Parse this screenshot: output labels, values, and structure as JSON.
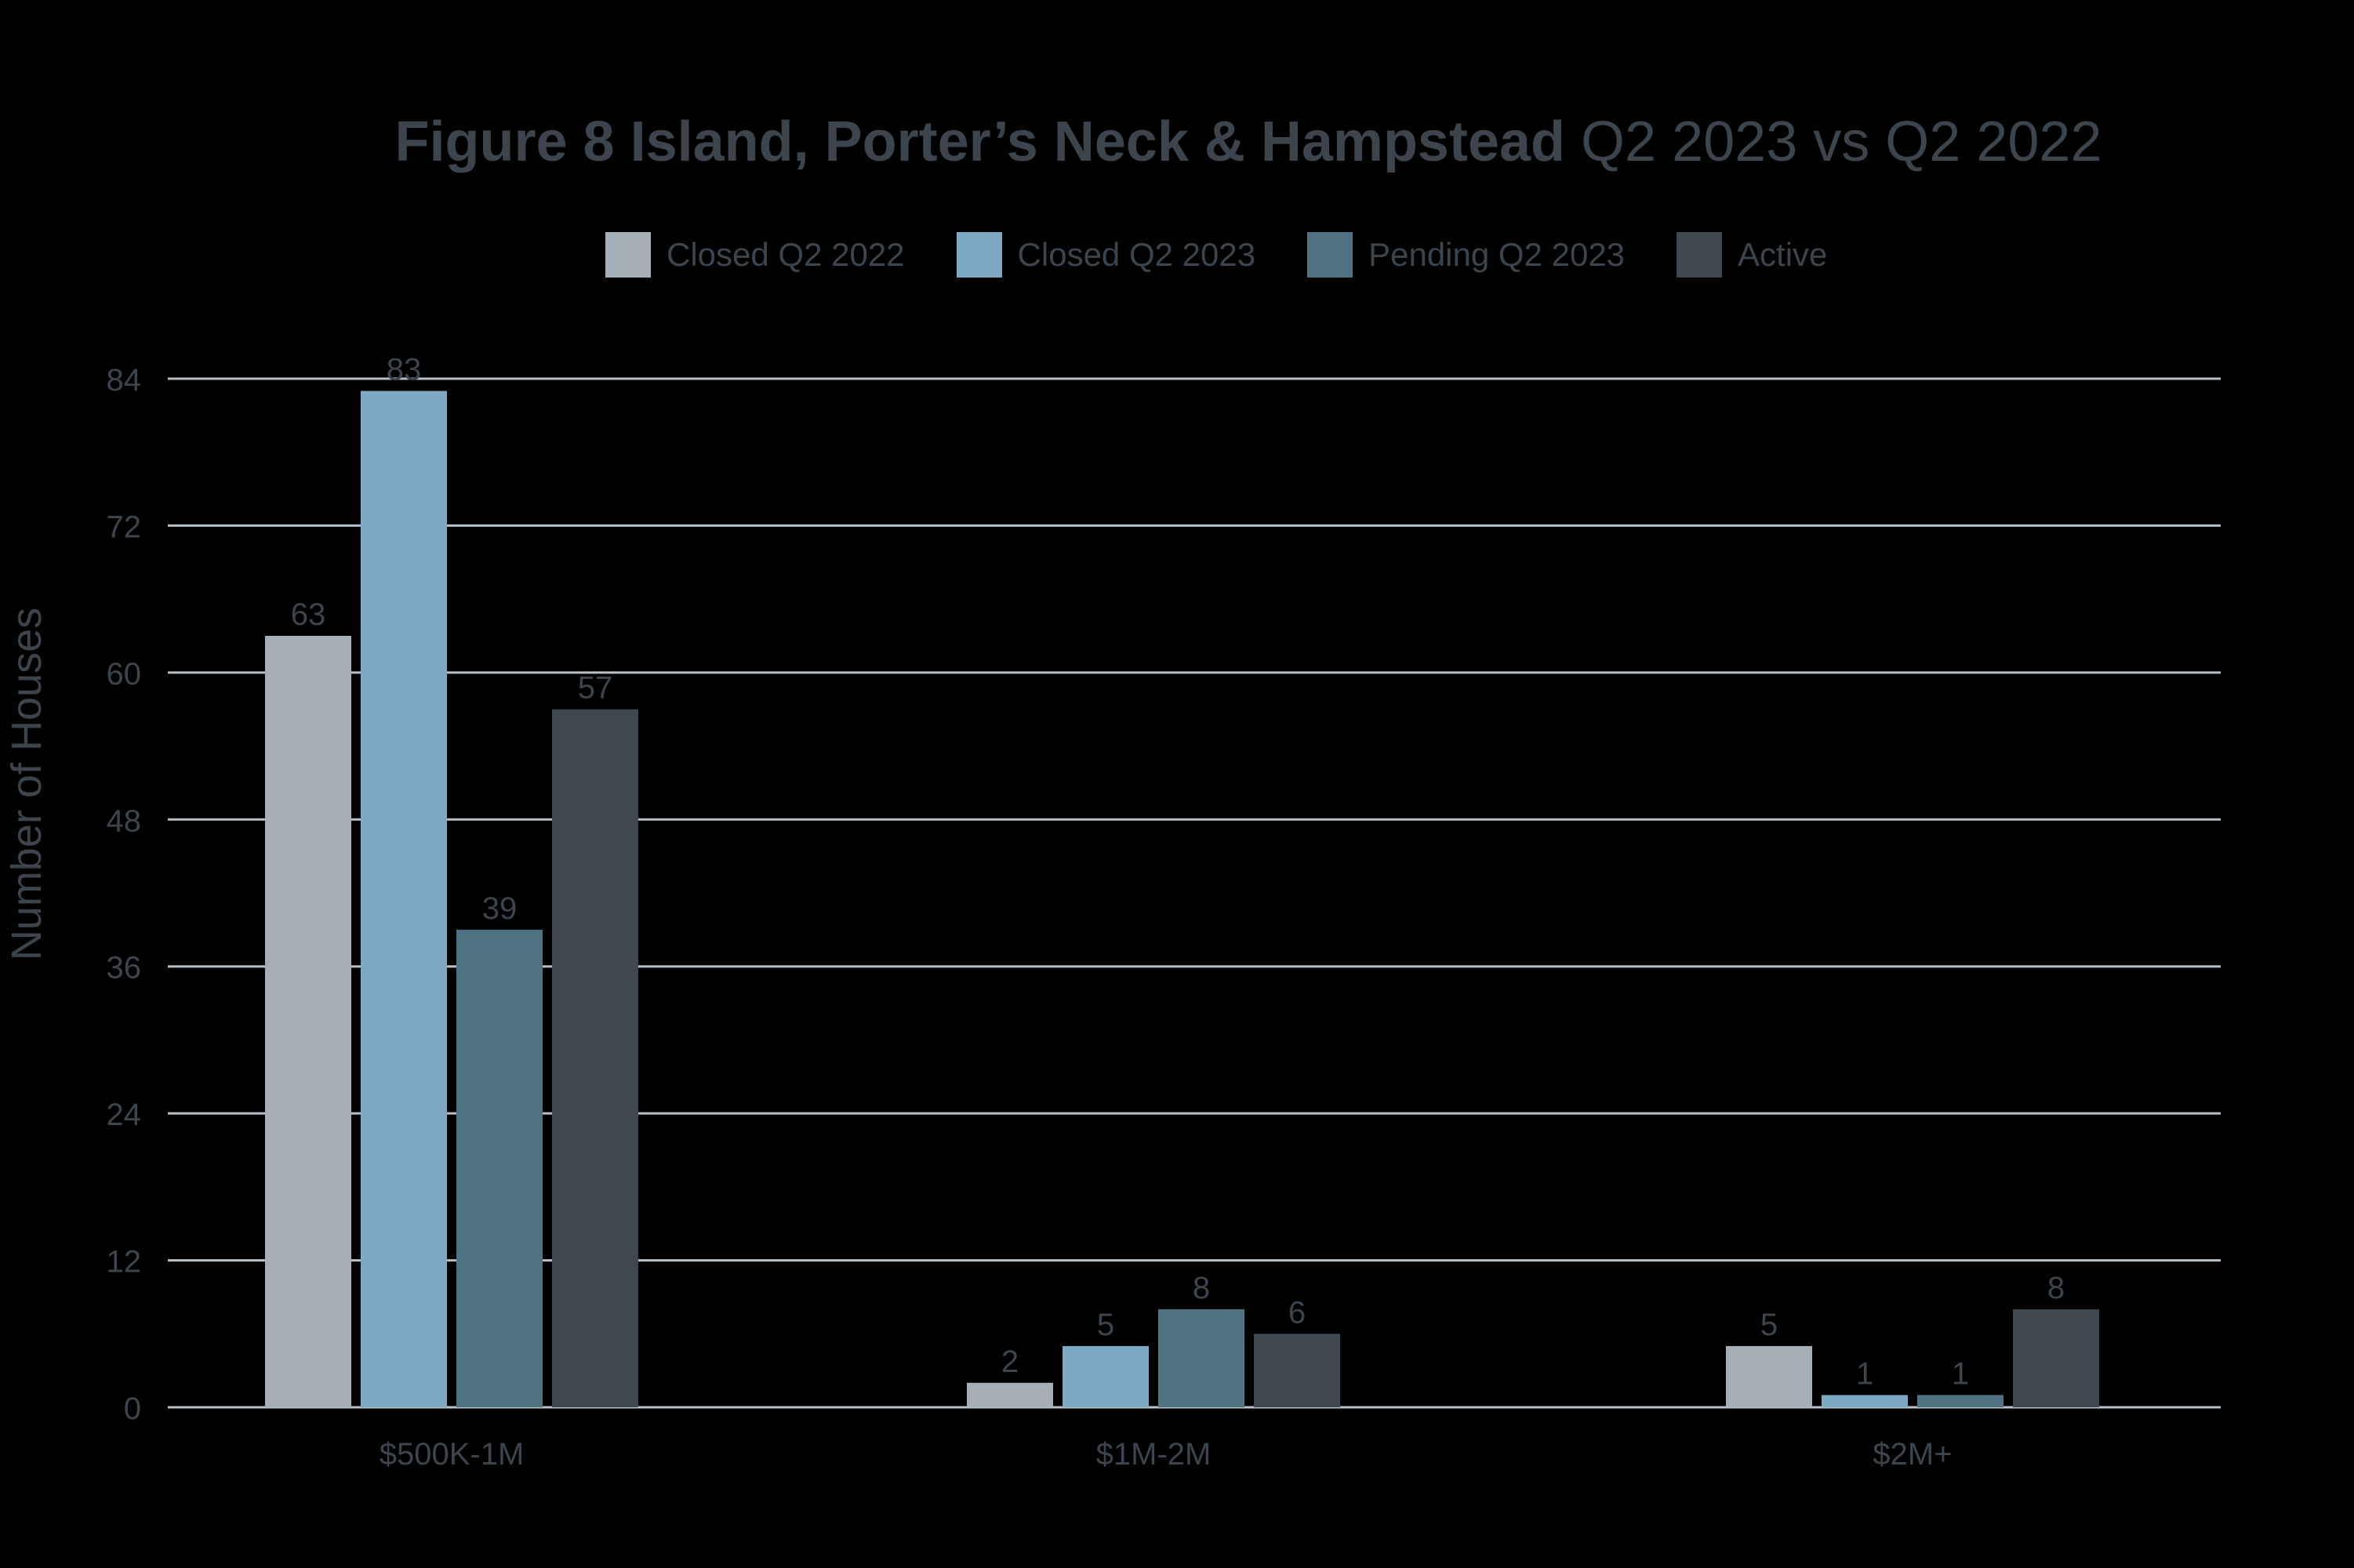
{
  "chart_data": {
    "type": "bar",
    "title": "Figure 8 Island, Porter’s Neck & Hampstead",
    "subtitle": "Q2 2023 vs Q2 2022",
    "xlabel": "",
    "ylabel": "Number of Houses",
    "ylim": [
      0,
      84
    ],
    "yticks": [
      0,
      12,
      24,
      36,
      48,
      60,
      72,
      84
    ],
    "grid": true,
    "legend_position": "top",
    "categories": [
      "$500K-1M",
      "$1M-2M",
      "$2M+"
    ],
    "series": [
      {
        "name": "Closed Q2 2022",
        "color": "#a5afb7",
        "values": [
          63,
          2,
          5
        ]
      },
      {
        "name": "Closed Q2 2023",
        "color": "#7ea9c4",
        "values": [
          83,
          5,
          1
        ]
      },
      {
        "name": "Pending Q2 2023",
        "color": "#4f7383",
        "values": [
          39,
          8,
          1
        ]
      },
      {
        "name": "Active",
        "color": "#3f474f",
        "values": [
          57,
          6,
          8
        ]
      }
    ]
  }
}
